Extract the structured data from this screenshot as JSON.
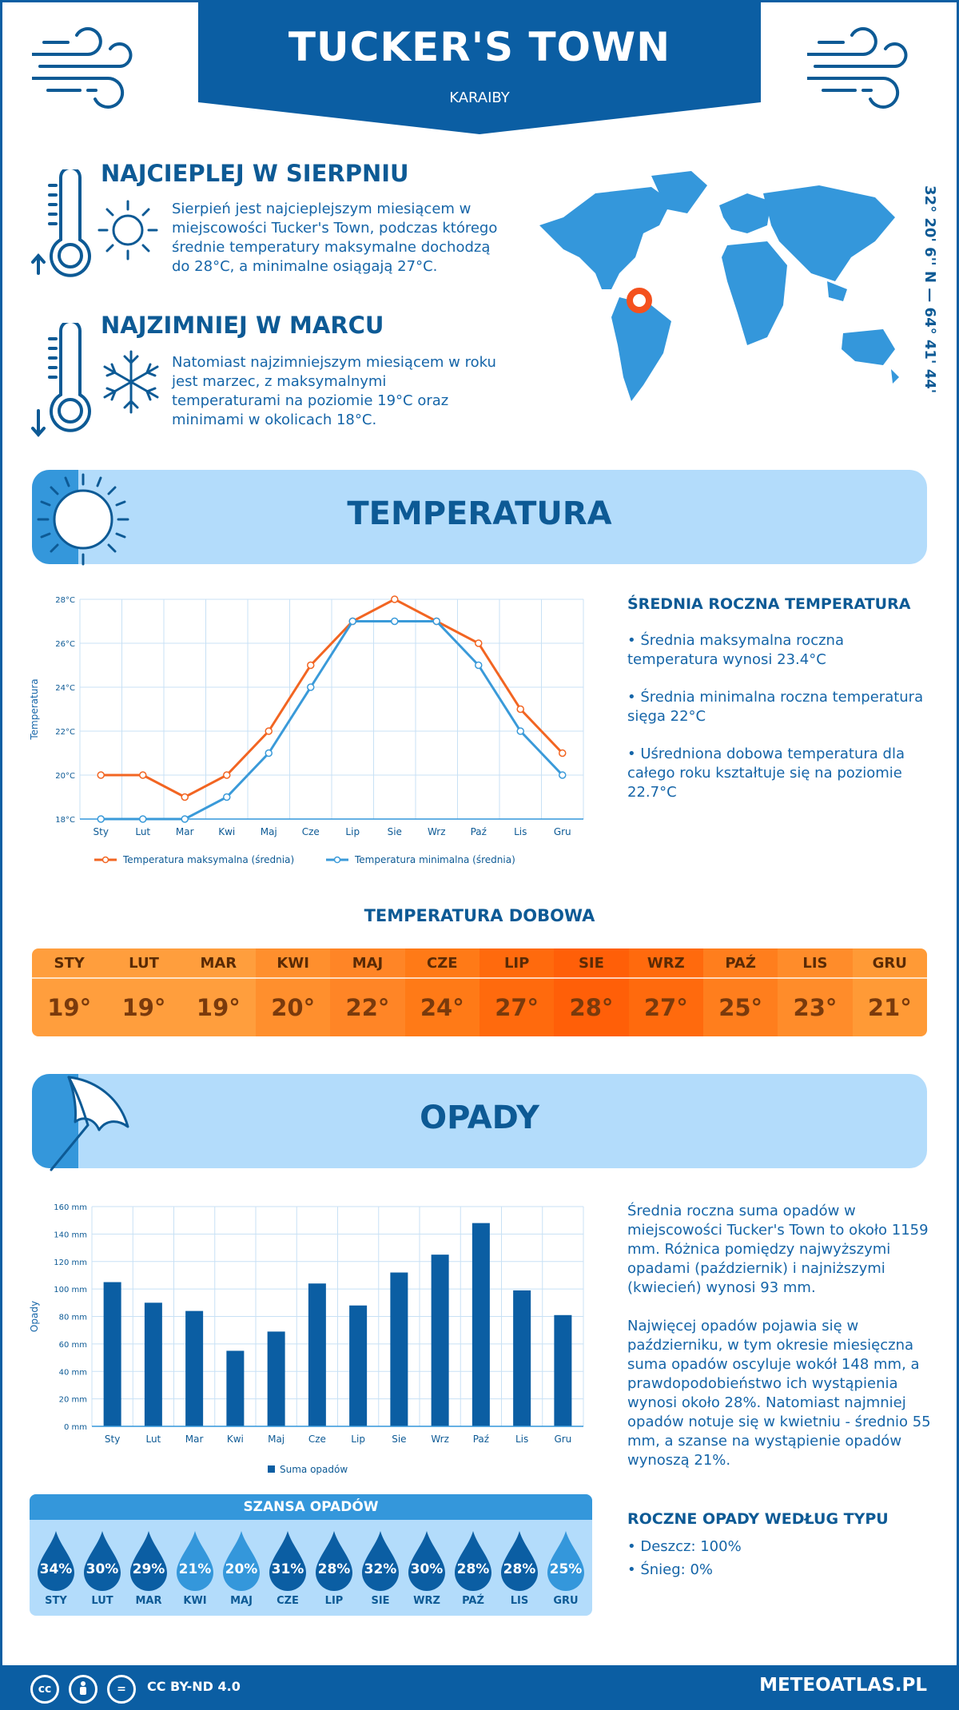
{
  "header": {
    "title": "TUCKER'S TOWN",
    "subtitle": "KARAIBY"
  },
  "warmest": {
    "title": "NAJCIEPLEJ W SIERPNIU",
    "text": "Sierpień jest najcieplejszym miesiącem w miejscowości Tucker's Town, podczas którego średnie temperatury maksymalne dochodzą do 28°C, a minimalne osiągają 27°C."
  },
  "coldest": {
    "title": "NAJZIMNIEJ W MARCU",
    "text": "Natomiast najzimniejszym miesiącem w roku jest marzec, z maksymalnymi temperaturami na poziomie 19°C oraz minimami w okolicach 18°C."
  },
  "coordinates": "32° 20' 6'' N — 64° 41' 44'' W",
  "temperature_section": {
    "title": "TEMPERATURA",
    "side_title": "ŚREDNIA ROCZNA TEMPERATURA",
    "bullets": [
      "• Średnia maksymalna roczna temperatura wynosi 23.4°C",
      "• Średnia minimalna roczna temperatura sięga 22°C",
      "• Uśredniona dobowa temperatura dla całego roku kształtuje się na poziomie 22.7°C"
    ]
  },
  "daily_table": {
    "title": "TEMPERATURA DOBOWA",
    "months": [
      "STY",
      "LUT",
      "MAR",
      "KWI",
      "MAJ",
      "CZE",
      "LIP",
      "SIE",
      "WRZ",
      "PAŹ",
      "LIS",
      "GRU"
    ],
    "values": [
      "19°",
      "19°",
      "19°",
      "20°",
      "22°",
      "24°",
      "27°",
      "28°",
      "27°",
      "25°",
      "23°",
      "21°"
    ],
    "colors": [
      "#ff9e3d",
      "#ff9e3d",
      "#ff9e3d",
      "#ff8f2d",
      "#ff8526",
      "#ff7a17",
      "#ff6a0d",
      "#ff5f08",
      "#ff6a0d",
      "#ff7e1d",
      "#ff8c2a",
      "#ff9a36"
    ]
  },
  "precip_section": {
    "title": "OPADY",
    "para1": "Średnia roczna suma opadów w miejscowości Tucker's Town to około 1159 mm. Różnica pomiędzy najwyższymi opadami (październik) i najniższymi (kwiecień) wynosi 93 mm.",
    "para2": "Najwięcej opadów pojawia się w październiku, w tym okresie miesięczna suma opadów oscyluje wokół 148 mm, a prawdopodobieństwo ich wystąpienia wynosi około 28%. Natomiast najmniej opadów notuje się w kwietniu - średnio 55 mm, a szanse na wystąpienie opadów wynoszą 21%.",
    "type_title": "ROCZNE OPADY WEDŁUG TYPU",
    "type_rain": "• Deszcz: 100%",
    "type_snow": "• Śnieg: 0%"
  },
  "rain_chance": {
    "title": "SZANSA OPADÓW",
    "months": [
      "STY",
      "LUT",
      "MAR",
      "KWI",
      "MAJ",
      "CZE",
      "LIP",
      "SIE",
      "WRZ",
      "PAŹ",
      "LIS",
      "GRU"
    ],
    "values": [
      "34%",
      "30%",
      "29%",
      "21%",
      "20%",
      "31%",
      "28%",
      "32%",
      "30%",
      "28%",
      "28%",
      "25%"
    ],
    "colors": [
      "#0b5ea3",
      "#0b5ea3",
      "#0b5ea3",
      "#3497db",
      "#3497db",
      "#0b5ea3",
      "#0b5ea3",
      "#0b5ea3",
      "#0b5ea3",
      "#0b5ea3",
      "#0b5ea3",
      "#3497db"
    ]
  },
  "footer": {
    "license": "CC BY-ND 4.0",
    "site": "METEOATLAS.PL"
  },
  "chart_data": [
    {
      "type": "line",
      "categories": [
        "Sty",
        "Lut",
        "Mar",
        "Kwi",
        "Maj",
        "Cze",
        "Lip",
        "Sie",
        "Wrz",
        "Paź",
        "Lis",
        "Gru"
      ],
      "series": [
        {
          "name": "Temperatura maksymalna (średnia)",
          "values": [
            20,
            20,
            19,
            20,
            22,
            25,
            27,
            28,
            27,
            26,
            23,
            21
          ],
          "color": "#f26522"
        },
        {
          "name": "Temperatura minimalna (średnia)",
          "values": [
            18,
            18,
            18,
            19,
            21,
            24,
            27,
            27,
            27,
            25,
            22,
            20
          ],
          "color": "#3a9ad9"
        }
      ],
      "ylabel": "Temperatura",
      "ylim": [
        18,
        28
      ],
      "yticks": [
        "18°C",
        "20°C",
        "22°C",
        "24°C",
        "26°C",
        "28°C"
      ],
      "grid": true,
      "legend": "bottom"
    },
    {
      "type": "bar",
      "categories": [
        "Sty",
        "Lut",
        "Mar",
        "Kwi",
        "Maj",
        "Cze",
        "Lip",
        "Sie",
        "Wrz",
        "Paź",
        "Lis",
        "Gru"
      ],
      "series": [
        {
          "name": "Suma opadów",
          "values": [
            105,
            90,
            84,
            55,
            69,
            104,
            88,
            112,
            125,
            148,
            99,
            81
          ],
          "color": "#0b5ea3"
        }
      ],
      "ylabel": "Opady",
      "ylim": [
        0,
        160
      ],
      "yticks": [
        "0 mm",
        "20 mm",
        "40 mm",
        "60 mm",
        "80 mm",
        "100 mm",
        "120 mm",
        "140 mm",
        "160 mm"
      ],
      "grid": true,
      "legend": "bottom"
    }
  ]
}
